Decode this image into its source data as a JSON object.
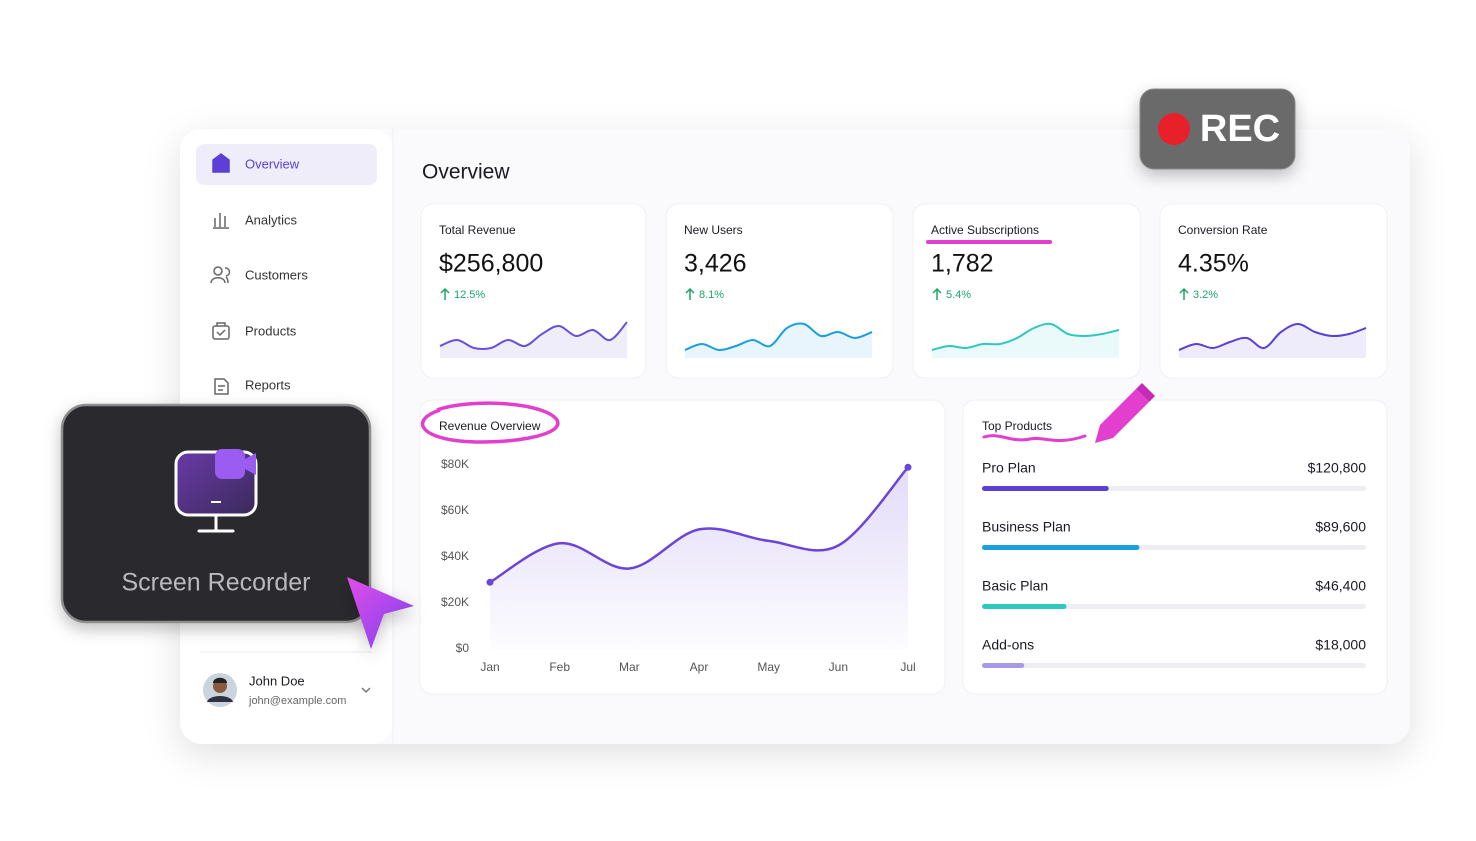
{
  "nav": {
    "items": [
      "Overview",
      "Analytics",
      "Customers",
      "Products",
      "Reports"
    ]
  },
  "user": {
    "name": "John Doe",
    "email": "john@example.com"
  },
  "header": {
    "title": "Overview"
  },
  "trend_ylim": [
    0,
    10
  ],
  "stats": [
    {
      "label": "Total Revenue",
      "value": "$256,800",
      "change": "12.5%",
      "color": "#6a4fd8",
      "trend": [
        3,
        4.5,
        2.5,
        2.5,
        4.5,
        3,
        6,
        8,
        5.5,
        7,
        4.5,
        9
      ]
    },
    {
      "label": "New Users",
      "value": "3,426",
      "change": "8.1%",
      "color": "#1a9fe0",
      "trend": [
        2,
        3.5,
        2,
        3,
        4.5,
        3,
        7.5,
        8.5,
        5.5,
        6.5,
        5,
        6.5
      ]
    },
    {
      "label": "Active Subscriptions",
      "value": "1,782",
      "change": "5.4%",
      "color": "#2ec8c0",
      "trend": [
        2,
        3,
        2.5,
        3.5,
        3.5,
        5,
        7.5,
        8.5,
        6,
        5.5,
        6,
        7
      ]
    },
    {
      "label": "Conversion Rate",
      "value": "4.35%",
      "change": "3.2%",
      "color": "#5b3fd6",
      "trend": [
        2,
        3.5,
        2.5,
        4,
        5,
        2.5,
        6.5,
        8.5,
        6.5,
        5.5,
        6,
        7.5
      ]
    }
  ],
  "revenue_chart": {
    "type": "line",
    "title": "Revenue Overview",
    "color": "#6a45d8",
    "categories": [
      "Jan",
      "Feb",
      "Mar",
      "Apr",
      "May",
      "Jun",
      "Jul"
    ],
    "values": [
      29000,
      46000,
      35000,
      52000,
      47000,
      45000,
      79000
    ],
    "ylim": [
      0,
      80000
    ],
    "yticks": [
      {
        "value": 0,
        "label": "$0"
      },
      {
        "value": 20000,
        "label": "$20K"
      },
      {
        "value": 40000,
        "label": "$40K"
      },
      {
        "value": 60000,
        "label": "$60K"
      },
      {
        "value": 80000,
        "label": "$80K"
      }
    ],
    "grid": false
  },
  "top_products": {
    "title": "Top Products",
    "xlim": [
      0,
      100
    ],
    "items": [
      {
        "name": "Pro Plan",
        "value": {
          "value": 120800,
          "label": "$120,800"
        },
        "progress": 33,
        "color": "#5b3fd6"
      },
      {
        "name": "Business Plan",
        "value": {
          "value": 89600,
          "label": "$89,600"
        },
        "progress": 41,
        "color": "#1a9fe0"
      },
      {
        "name": "Basic Plan",
        "value": {
          "value": 46400,
          "label": "$46,400"
        },
        "progress": 22,
        "color": "#2ec8c0"
      },
      {
        "name": "Add-ons",
        "value": {
          "value": 18000,
          "label": "$18,000"
        },
        "progress": 11,
        "color": "#a99ae8"
      }
    ]
  },
  "recorder": {
    "label": "Screen Recorder"
  },
  "badge": {
    "label": "REC"
  }
}
